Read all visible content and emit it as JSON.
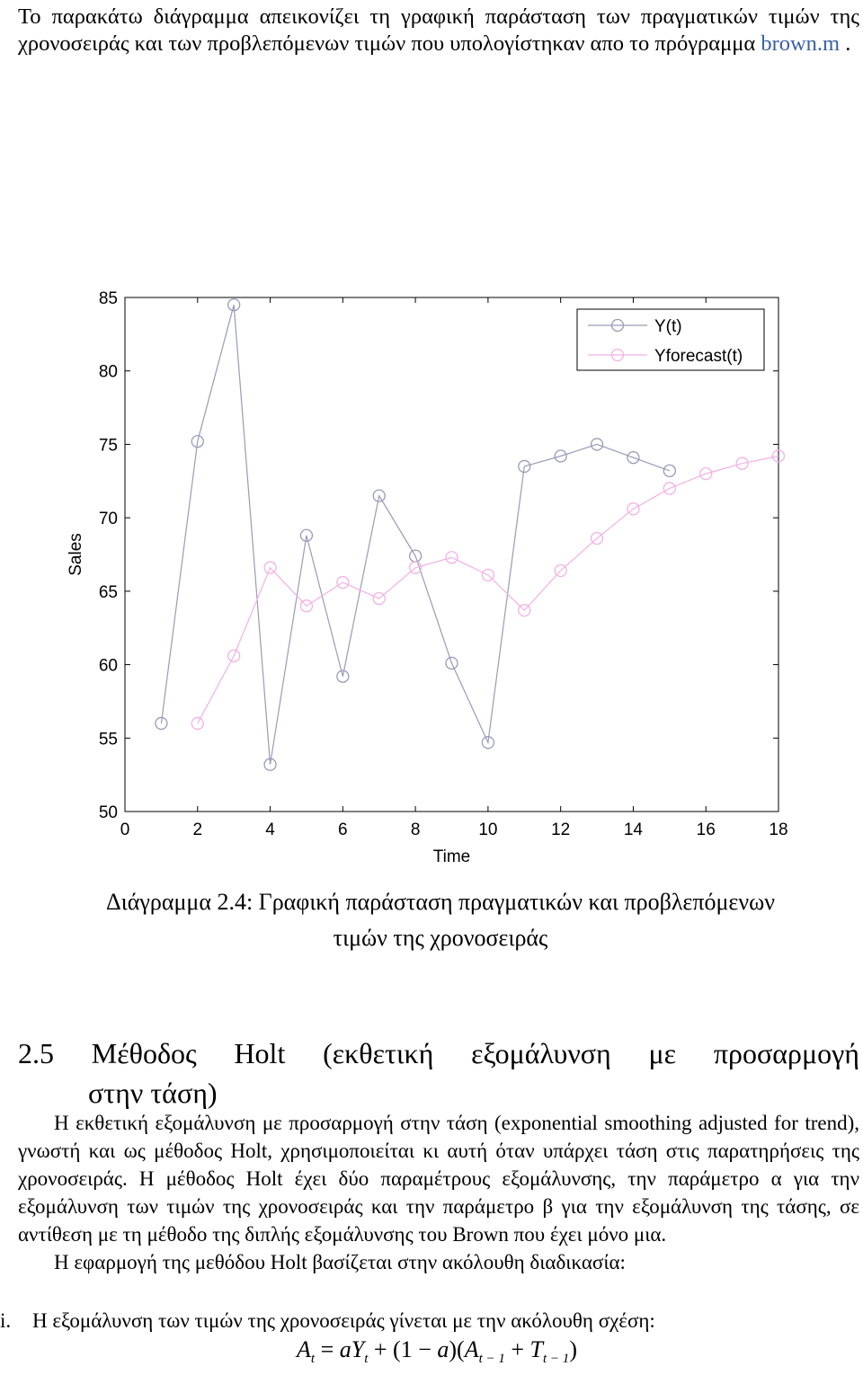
{
  "intro": {
    "text_before": "Το παρακάτω διάγραμμα απεικονίζει τη γραφική παράσταση των πραγματικών τιμών της χρονοσειράς και των προβλεπόμενων τιμών που υπολογίστηκαν απο το πρόγραμμα ",
    "link": "brown.m",
    "text_after": " ."
  },
  "chart_data": {
    "type": "line",
    "xlabel": "Time",
    "ylabel": "Sales",
    "xlim": [
      0,
      18
    ],
    "ylim": [
      50,
      85
    ],
    "xticks": [
      "0",
      "2",
      "4",
      "6",
      "8",
      "10",
      "12",
      "14",
      "16",
      "18"
    ],
    "yticks": [
      "50",
      "55",
      "60",
      "65",
      "70",
      "75",
      "80",
      "85"
    ],
    "grid": false,
    "legend_position": "top-right",
    "series": [
      {
        "name": "Y(t)",
        "color": "#9a9ab8",
        "marker": "circle",
        "x": [
          1,
          2,
          3,
          4,
          5,
          6,
          7,
          8,
          9,
          10,
          11,
          12,
          13,
          14,
          15
        ],
        "y": [
          56,
          75.2,
          84.5,
          53.2,
          68.8,
          59.2,
          71.5,
          67.4,
          60.1,
          54.7,
          73.5,
          74.2,
          75.0,
          74.1,
          73.2
        ]
      },
      {
        "name": "Yforecast(t)",
        "color": "#f3b0e6",
        "marker": "circle",
        "x": [
          2,
          3,
          4,
          5,
          6,
          7,
          8,
          9,
          10,
          11,
          12,
          13,
          14,
          15,
          16,
          17,
          18
        ],
        "y": [
          56,
          60.6,
          66.6,
          64.0,
          65.6,
          64.5,
          66.6,
          67.3,
          66.1,
          63.7,
          66.4,
          68.6,
          70.6,
          72.0,
          73.0,
          73.7,
          74.2
        ]
      }
    ]
  },
  "caption": {
    "line1": "Διάγραμμα 2.4: Γραφική παράσταση πραγματικών και προβλεπόμενων",
    "line2": "τιμών της χρονοσειράς"
  },
  "section": {
    "number": "2.5",
    "words": [
      "Μέθοδος",
      "Holt",
      "(εκθετική",
      "εξομάλυνση",
      "με",
      "προσαρμογή"
    ],
    "line2": "στην τάση)"
  },
  "body": {
    "para1": "Η εκθετική εξομάλυνση με προσαρμογή στην τάση (exponential smoothing adjusted for trend), γνωστή και ως μέθοδος Holt, χρησιμοποιείται κι αυτή όταν υπάρχει τάση στις παρατηρήσεις της χρονοσειράς. Η μέθοδος Holt έχει δύο παραμέτρους εξομάλυνσης, την παράμετρο α για την εξομάλυνση των τιμών της χρονοσειράς και την παράμετρο β για την εξομάλυνση της τάσης, σε αντίθεση με τη μέθοδο της διπλής εξομάλυνσης του Brown που έχει μόνο μια.",
    "para2": "Η εφαρμογή της μεθόδου Holt βασίζεται στην ακόλουθη διαδικασία:",
    "item_number": "i.",
    "item_text": "Η εξομάλυνση των τιμών της χρονοσειράς γίνεται με την ακόλουθη σχέση:"
  },
  "formula": {
    "lhs": "A",
    "lhs_sub": "t",
    "eq": " = ",
    "a1": "aY",
    "a1_sub": "t",
    "plus": " + (1 − ",
    "a2": "a",
    "mid": ")(",
    "A2": "A",
    "A2_sub": "t − 1",
    "plus2": " + ",
    "T": "T",
    "T_sub": "t − 1",
    "close": ")"
  }
}
